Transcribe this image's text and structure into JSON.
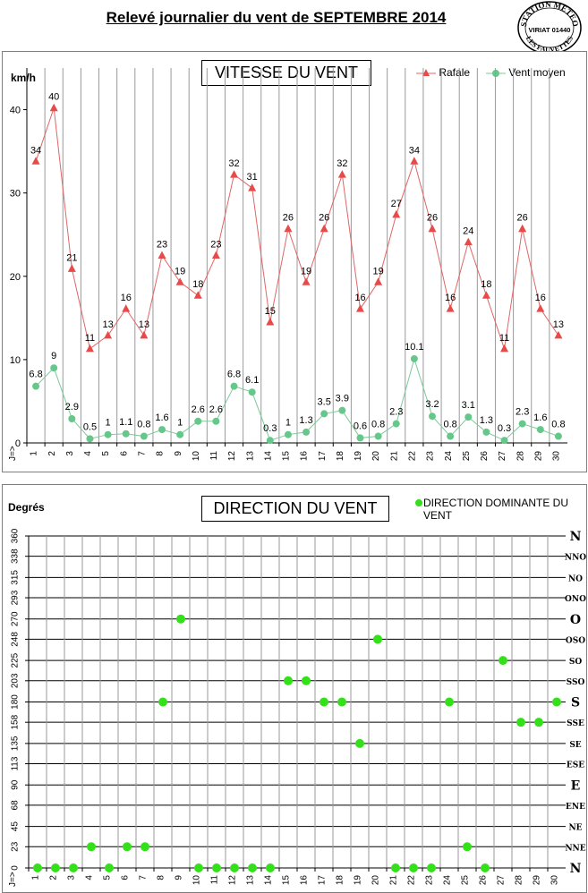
{
  "title": "Relevé journalier du vent de SEPTEMBRE 2014",
  "stamp": {
    "line1": "STATION METEO",
    "line2": "VIRIAT 01440",
    "line3": "LES FAUVETTES"
  },
  "speed_chart": {
    "title": "VITESSE DU VENT",
    "unit": "km/h",
    "legend": [
      "Rafale",
      "Vent moyen"
    ],
    "day_axis_label": "J=>",
    "colors": {
      "gust": "#e06666",
      "gust_marker": "#e84a4a",
      "mean": "#7cc99a",
      "mean_marker": "#66c78a"
    }
  },
  "direction_chart": {
    "title": "DIRECTION DU VENT",
    "unit": "Degrés",
    "legend": "DIRECTION DOMINANTE DU VENT",
    "day_axis_label": "J=>",
    "colors": {
      "marker": "#33e01a"
    }
  },
  "chart_data": [
    {
      "type": "line",
      "x": [
        1,
        2,
        3,
        4,
        5,
        6,
        7,
        8,
        9,
        10,
        11,
        12,
        13,
        14,
        15,
        16,
        17,
        18,
        19,
        20,
        21,
        22,
        23,
        24,
        25,
        26,
        27,
        28,
        29,
        30
      ],
      "series": [
        {
          "name": "Rafale",
          "values": [
            34,
            40,
            21,
            11,
            13,
            16,
            13,
            23,
            19,
            18,
            23,
            32,
            31,
            15,
            26,
            19,
            26,
            32,
            16,
            19,
            27,
            34,
            26,
            16,
            24,
            18,
            11,
            26,
            16,
            13
          ],
          "plotted": [
            33.8,
            40.2,
            20.9,
            11.3,
            12.9,
            16.1,
            12.9,
            22.5,
            19.3,
            17.7,
            22.5,
            32.2,
            30.6,
            14.5,
            25.7,
            19.3,
            25.7,
            32.2,
            16.1,
            19.3,
            27.4,
            33.8,
            25.7,
            16.1,
            24.1,
            17.7,
            11.3,
            25.7,
            16.1,
            12.9
          ]
        },
        {
          "name": "Vent moyen",
          "values": [
            6.8,
            9,
            2.9,
            0.5,
            1,
            1.1,
            0.8,
            1.6,
            1,
            2.6,
            2.6,
            6.8,
            6.1,
            0.3,
            1,
            1.3,
            3.5,
            3.9,
            0.6,
            0.8,
            2.3,
            10.1,
            3.2,
            0.8,
            3.1,
            1.3,
            0.3,
            2.3,
            1.6,
            0.8
          ],
          "labels": [
            "6.8",
            "9",
            "2.9",
            "0.5",
            "1",
            "1.1",
            "0.8",
            "1.6",
            "1",
            "2.6",
            "2.6",
            "6.8",
            "6.1",
            "0.3",
            "1",
            "1.3",
            "3.5",
            "3.9",
            "0.6",
            "0.8",
            "2.3",
            "10.1",
            "3.2",
            "0.8",
            "3.1",
            "1.3",
            "0.3",
            "2.3",
            "1.6",
            "0.8"
          ]
        }
      ],
      "yticks": [
        0,
        10,
        20,
        30,
        40
      ],
      "ylim": [
        0,
        45
      ]
    },
    {
      "type": "scatter",
      "x": [
        1,
        2,
        3,
        4,
        5,
        6,
        7,
        8,
        9,
        10,
        11,
        12,
        13,
        14,
        15,
        16,
        17,
        18,
        19,
        20,
        21,
        22,
        23,
        24,
        25,
        26,
        27,
        28,
        29,
        30
      ],
      "values": [
        0,
        0,
        0,
        23,
        0,
        23,
        23,
        180,
        270,
        0,
        0,
        0,
        0,
        0,
        203,
        203,
        180,
        180,
        135,
        248,
        0,
        0,
        0,
        180,
        23,
        0,
        225,
        158,
        158,
        180
      ],
      "yticks": [
        0,
        23,
        45,
        68,
        90,
        113,
        135,
        158,
        180,
        203,
        225,
        248,
        270,
        293,
        315,
        338,
        360
      ],
      "direction_labels": [
        "N",
        "NNE",
        "NE",
        "ENE",
        "E",
        "ESE",
        "SE",
        "SSE",
        "S",
        "SSO",
        "SO",
        "OSO",
        "O",
        "ONO",
        "NO",
        "NNO",
        "N"
      ],
      "ylim": [
        0,
        360
      ]
    }
  ]
}
